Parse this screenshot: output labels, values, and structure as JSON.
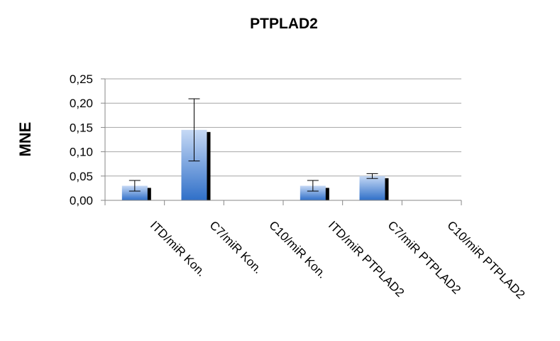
{
  "chart_data": {
    "type": "bar",
    "title": "PTPLAD2",
    "xlabel": "",
    "ylabel": "MNE",
    "ylim": [
      0,
      0.25
    ],
    "yticks": [
      "0,00",
      "0,05",
      "0,10",
      "0,15",
      "0,20",
      "0,25"
    ],
    "grid": true,
    "legend": "none",
    "categories": [
      "ITD/miR Kon.",
      "C7/miR Kon.",
      "C10/miR Kon.",
      "ITD/miR PTPLAD2",
      "C7/miR PTPLAD2",
      "C10/miR PTPLAD2"
    ],
    "values": [
      0.03,
      0.145,
      0,
      0.03,
      0.05,
      0
    ],
    "errors": [
      0.011,
      0.064,
      0,
      0.011,
      0.005,
      0
    ],
    "colors": {
      "bar_light": "#c6d9f5",
      "bar_dark": "#2f6fc8",
      "bar_shadow": "#000000",
      "grid": "#a6a6a6",
      "axis": "#878787"
    }
  }
}
